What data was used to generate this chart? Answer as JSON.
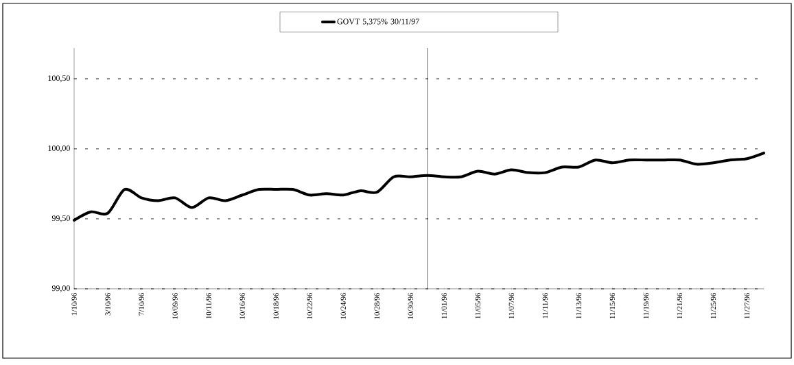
{
  "chart_data": {
    "type": "line",
    "categories": [
      "1/10/96",
      null,
      "3/10/96",
      null,
      "7/10/96",
      null,
      "10/09/96",
      null,
      "10/11/96",
      null,
      "10/16/96",
      null,
      "10/18/96",
      null,
      "10/22/96",
      null,
      "10/24/96",
      null,
      "10/28/96",
      null,
      "10/30/96",
      null,
      "11/01/96",
      null,
      "11/05/96",
      null,
      "11/07/96",
      null,
      "11/11/96",
      null,
      "11/13/96",
      null,
      "11/15/96",
      null,
      "11/19/96",
      null,
      "11/21/96",
      null,
      "11/25/96",
      null,
      "11/27/96",
      null
    ],
    "series": [
      {
        "name": "GOVT 5,375% 30/11/97",
        "color": "#000000",
        "values": [
          99.49,
          99.55,
          99.54,
          99.71,
          99.65,
          99.63,
          99.65,
          99.58,
          99.65,
          99.63,
          99.67,
          99.71,
          99.71,
          99.71,
          99.67,
          99.68,
          99.67,
          99.7,
          99.69,
          99.8,
          99.8,
          99.81,
          99.8,
          99.8,
          99.84,
          99.82,
          99.85,
          99.83,
          99.83,
          99.87,
          99.87,
          99.92,
          99.9,
          99.92,
          99.92,
          99.92,
          99.92,
          99.89,
          99.9,
          99.92,
          99.93,
          99.97
        ]
      }
    ],
    "ylim": [
      99,
      100.72
    ],
    "yticks": [
      {
        "value": 99,
        "label": "99,00"
      },
      {
        "value": 99.5,
        "label": "99,50"
      },
      {
        "value": 100,
        "label": "100,00"
      },
      {
        "value": 100.5,
        "label": "100,50"
      }
    ],
    "grid": "y",
    "legend": "top",
    "line_style": "solid",
    "marker": "none"
  }
}
